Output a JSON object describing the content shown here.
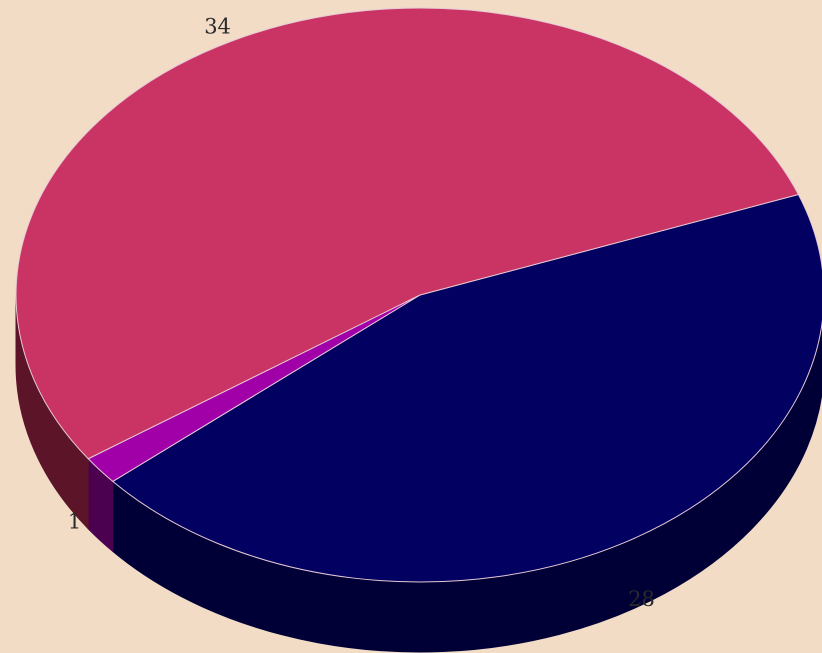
{
  "background_color": "#f2dcc6",
  "chart_data": {
    "type": "pie",
    "style": "3d",
    "start_angle_deg": -20.5,
    "direction": "clockwise",
    "grid": false,
    "legend": "none",
    "slices": [
      {
        "value": 28,
        "label": "28",
        "color": "#020060",
        "side_color": "#010036"
      },
      {
        "value": 1,
        "label": "1",
        "color": "#a100a8",
        "side_color": "#4c0050"
      },
      {
        "value": 34,
        "label": "34",
        "color": "#c93465",
        "side_color": "#5c1428"
      }
    ]
  }
}
